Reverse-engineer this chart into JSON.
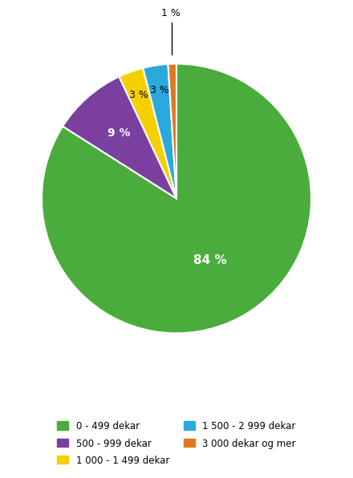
{
  "slices": [
    84,
    9,
    3,
    3,
    1
  ],
  "labels": [
    "0 - 499 dekar",
    "500 - 999 dekar",
    "1 000 - 1 499 dekar",
    "1 500 - 2 999 dekar",
    "3 000 dekar og mer"
  ],
  "colors": [
    "#4aac3c",
    "#7b3fa0",
    "#f5d000",
    "#2aaadc",
    "#e07820"
  ],
  "legend_labels_col1": [
    "0 - 499 dekar",
    "500 - 999 dekar",
    "1 000 - 1 499 dekar"
  ],
  "legend_labels_col2": [
    "1 500 - 2 999 dekar",
    "3 000 dekar og mer"
  ],
  "legend_colors_col1": [
    "#4aac3c",
    "#7b3fa0",
    "#f5d000"
  ],
  "legend_colors_col2": [
    "#2aaadc",
    "#e07820"
  ]
}
